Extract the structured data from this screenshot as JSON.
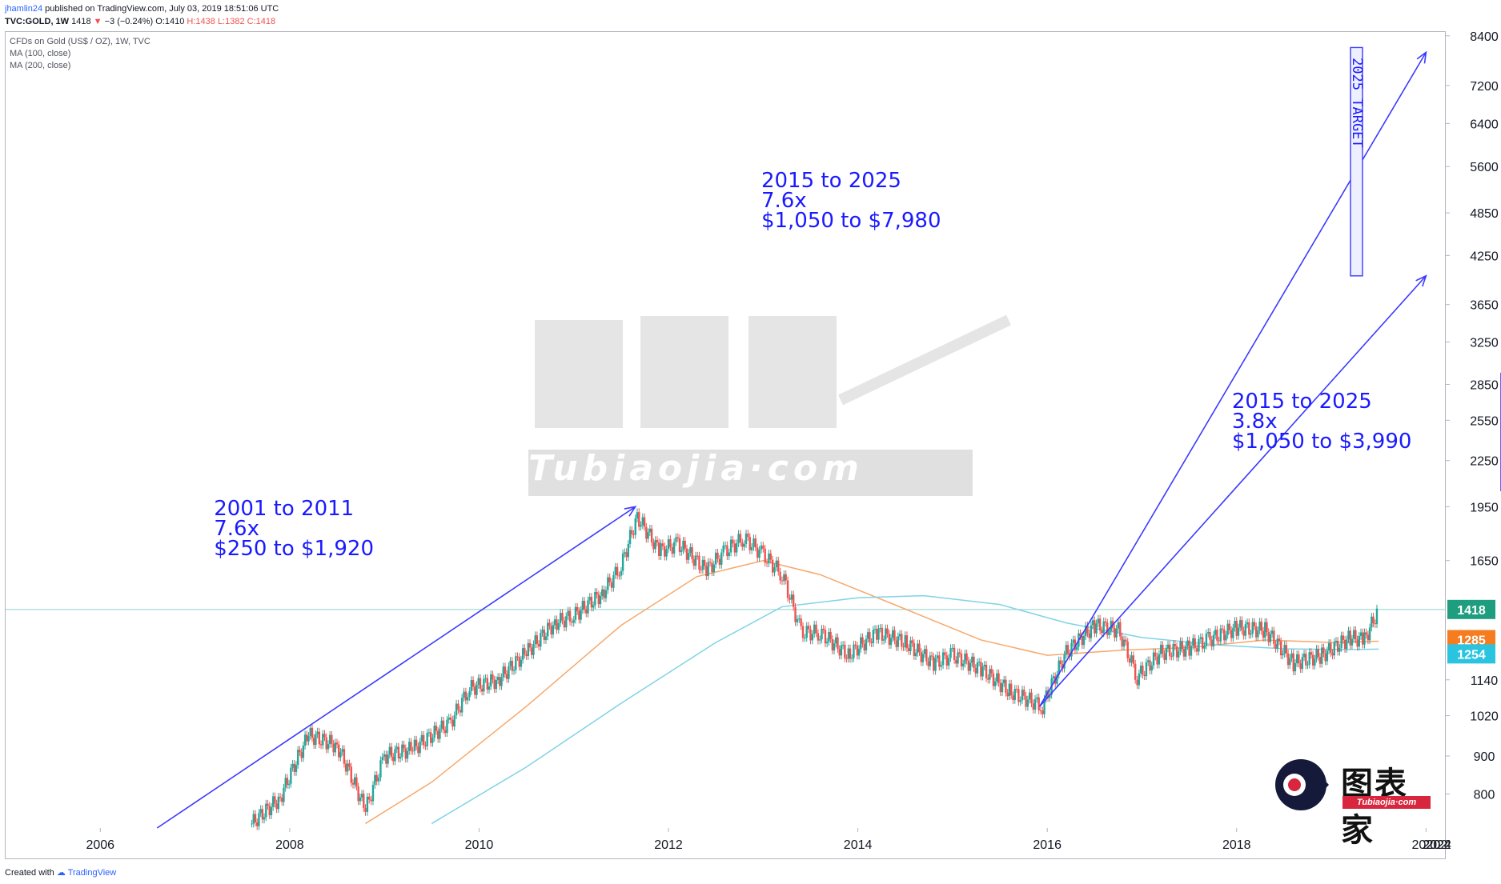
{
  "header": {
    "author": "jhamlin24",
    "published": "published on TradingView.com, July 03, 2019 18:51:06 UTC",
    "symbol": "TVC:GOLD, 1W",
    "last": "1418",
    "change": "−3 (−0.24%)",
    "open": "O:1410",
    "high": "H:1438",
    "low": "L:1382",
    "close": "C:1418"
  },
  "legend": {
    "title": "CFDs on Gold (US$ / OZ), 1W, TVC",
    "ma100": "MA (100, close)",
    "ma200": "MA (200, close)"
  },
  "footer": {
    "created": "Created with",
    "brand": "TradingView"
  },
  "watermark": {
    "text": "Tubiaojia·com",
    "logo_sub": "Tubiaojia·com"
  },
  "colors": {
    "up": "#26a69a",
    "down": "#ef5350",
    "ma100": "#f7a86b",
    "ma200": "#7fd3e6",
    "annotation": "#1a1aff"
  },
  "chart_data": {
    "type": "line",
    "y_scale": "log",
    "x_range": [
      2005.0,
      2020.2
    ],
    "y_range": [
      720,
      8500
    ],
    "x_ticks": [
      "2006",
      "2008",
      "2010",
      "2012",
      "2014",
      "2016",
      "2018",
      "2020",
      "2022",
      "2024",
      "202"
    ],
    "y_ticks": [
      "8400",
      "7200",
      "6400",
      "5600",
      "4850",
      "4250",
      "3650",
      "3250",
      "2850",
      "2550",
      "2250",
      "1950",
      "1650",
      "1140",
      "1020",
      "900",
      "800"
    ],
    "price": {
      "x": [
        2007.6,
        2007.9,
        2008.2,
        2008.5,
        2008.8,
        2009.0,
        2009.3,
        2009.7,
        2009.9,
        2010.2,
        2010.5,
        2010.8,
        2011.0,
        2011.3,
        2011.5,
        2011.67,
        2011.9,
        2012.1,
        2012.4,
        2012.6,
        2012.8,
        2013.0,
        2013.2,
        2013.4,
        2013.6,
        2013.9,
        2014.2,
        2014.5,
        2014.8,
        2015.0,
        2015.3,
        2015.6,
        2015.95,
        2016.2,
        2016.5,
        2016.75,
        2016.95,
        2017.2,
        2017.5,
        2017.7,
        2018.0,
        2018.3,
        2018.6,
        2018.9,
        2019.2,
        2019.35,
        2019.5
      ],
      "y": [
        730,
        790,
        960,
        930,
        760,
        900,
        920,
        1000,
        1110,
        1140,
        1240,
        1360,
        1390,
        1490,
        1620,
        1890,
        1700,
        1740,
        1600,
        1700,
        1770,
        1680,
        1580,
        1320,
        1320,
        1230,
        1320,
        1280,
        1200,
        1230,
        1180,
        1100,
        1050,
        1240,
        1350,
        1330,
        1150,
        1240,
        1260,
        1290,
        1340,
        1330,
        1200,
        1230,
        1300,
        1290,
        1418
      ]
    },
    "ma100": {
      "x": [
        2008.8,
        2009.5,
        2010.5,
        2011.5,
        2012.3,
        2013.0,
        2013.6,
        2014.5,
        2015.3,
        2016.0,
        2016.8,
        2017.5,
        2018.3,
        2019.0,
        2019.5
      ],
      "y": [
        730,
        830,
        1050,
        1350,
        1570,
        1650,
        1580,
        1420,
        1290,
        1230,
        1250,
        1260,
        1290,
        1280,
        1285
      ]
    },
    "ma200": {
      "x": [
        2009.5,
        2010.5,
        2011.5,
        2012.5,
        2013.2,
        2014.0,
        2014.7,
        2015.5,
        2016.2,
        2017.0,
        2017.8,
        2018.5,
        2019.2,
        2019.5
      ],
      "y": [
        730,
        870,
        1060,
        1280,
        1430,
        1470,
        1480,
        1440,
        1360,
        1300,
        1270,
        1255,
        1252,
        1254
      ]
    },
    "current_price": "1418",
    "ma100_value": "1285",
    "ma200_value": "1254",
    "annotations": [
      {
        "lines": [
          "2001 to 2011",
          "7.6x",
          "$250 to $1,920"
        ]
      },
      {
        "lines": [
          "2015 to 2025",
          "7.6x",
          "$1,050 to $7,980"
        ]
      },
      {
        "lines": [
          "2015 to 2025",
          "3.8x",
          "$1,050 to $3,990"
        ]
      }
    ],
    "box_2020": "2020",
    "box_2025": "2025 TARGET",
    "arrows": [
      {
        "from": [
          2006.6,
          720
        ],
        "to": [
          2011.65,
          1950
        ]
      },
      {
        "from": [
          2015.92,
          1050
        ],
        "to": [
          2020.0,
          7980
        ]
      },
      {
        "from": [
          2015.92,
          1050
        ],
        "to": [
          2020.0,
          3990
        ]
      }
    ]
  }
}
